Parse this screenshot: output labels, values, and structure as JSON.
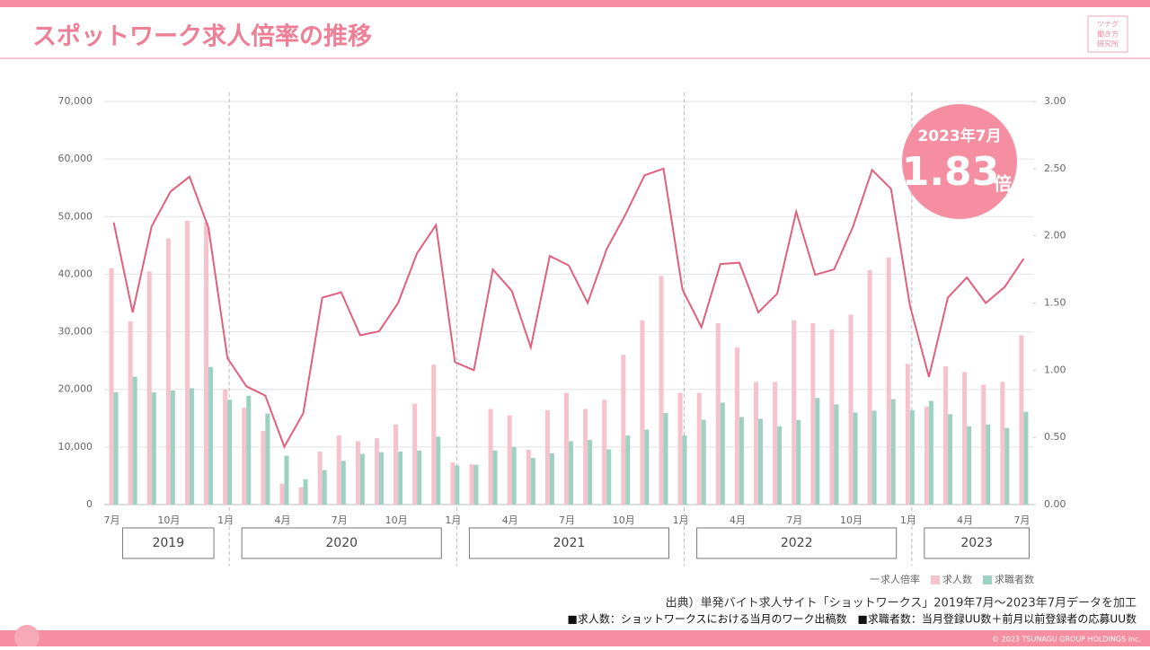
{
  "header": {
    "title": "スポットワーク求人倍率の推移",
    "logo": [
      "ツナグ",
      "働き方",
      "研究所"
    ]
  },
  "chart_data": {
    "type": "bar",
    "categories": [
      "7月",
      null,
      null,
      "10月",
      null,
      null,
      "1月",
      null,
      null,
      "4月",
      null,
      null,
      "7月",
      null,
      null,
      "10月",
      null,
      null,
      "1月",
      null,
      null,
      "4月",
      null,
      null,
      "7月",
      null,
      null,
      "10月",
      null,
      null,
      "1月",
      null,
      null,
      "4月",
      null,
      null,
      "7月",
      null,
      null,
      "10月",
      null,
      null,
      "1月",
      null,
      null,
      "4月",
      null,
      null,
      "7月"
    ],
    "year_groups": [
      {
        "label": "2019",
        "count": 6
      },
      {
        "label": "2020",
        "count": 12
      },
      {
        "label": "2021",
        "count": 12
      },
      {
        "label": "2022",
        "count": 12
      },
      {
        "label": "2023",
        "count": 7
      }
    ],
    "series": [
      {
        "name": "求人倍率",
        "type": "line",
        "axis": "y2",
        "color": "#e0607e",
        "values": [
          2.1,
          1.43,
          2.07,
          2.33,
          2.44,
          2.06,
          1.09,
          0.88,
          0.81,
          0.43,
          0.68,
          1.54,
          1.58,
          1.26,
          1.29,
          1.5,
          1.87,
          2.08,
          1.06,
          1.0,
          1.75,
          1.59,
          1.17,
          1.85,
          1.78,
          1.5,
          1.9,
          2.16,
          2.45,
          2.5,
          1.6,
          1.32,
          1.79,
          1.8,
          1.43,
          1.57,
          2.18,
          1.71,
          1.75,
          2.07,
          2.49,
          2.35,
          1.48,
          0.95,
          1.54,
          1.69,
          1.5,
          1.62,
          1.83
        ]
      },
      {
        "name": "求人数",
        "type": "bar",
        "color": "#f6c2cc",
        "values": [
          41000,
          31800,
          40500,
          46200,
          49300,
          49000,
          20000,
          16800,
          12800,
          3600,
          3000,
          9200,
          12000,
          11000,
          11500,
          13900,
          17500,
          24300,
          7300,
          7000,
          16600,
          15500,
          9500,
          16400,
          19400,
          16600,
          18200,
          26000,
          32000,
          39700,
          19400,
          19400,
          31500,
          27300,
          21300,
          21300,
          32000,
          31500,
          30400,
          33000,
          40700,
          42900,
          24400,
          17000,
          24000,
          23000,
          20800,
          21300,
          29400
        ]
      },
      {
        "name": "求職者数",
        "type": "bar",
        "color": "#9dd2c2",
        "values": [
          19500,
          22200,
          19500,
          19800,
          20200,
          23900,
          18200,
          18900,
          15800,
          8500,
          4400,
          6000,
          7600,
          8800,
          9100,
          9200,
          9400,
          11800,
          6800,
          6900,
          9400,
          10000,
          8100,
          8900,
          11000,
          11200,
          9600,
          12000,
          13000,
          15900,
          12000,
          14700,
          17700,
          15200,
          14900,
          13600,
          14700,
          18500,
          17400,
          16000,
          16300,
          18300,
          16400,
          18000,
          15700,
          13600,
          13900,
          13300,
          16100
        ]
      }
    ],
    "ylim": [
      0,
      70000
    ],
    "yticks": [
      0,
      {
        "value": 10000,
        "label": "10,000"
      },
      {
        "value": 20000,
        "label": "20,000"
      },
      {
        "value": 30000,
        "label": "30,000"
      },
      {
        "value": 40000,
        "label": "40,000"
      },
      {
        "value": 50000,
        "label": "50,000"
      },
      {
        "value": 60000,
        "label": "60,000"
      },
      {
        "value": 70000,
        "label": "70,000"
      }
    ],
    "y2lim": [
      0,
      3
    ],
    "y2ticks": [
      {
        "value": 0,
        "label": "0.00"
      },
      {
        "value": 0.5,
        "label": "0.50"
      },
      {
        "value": 1,
        "label": "1.00"
      },
      {
        "value": 1.5,
        "label": "1.50"
      },
      {
        "value": 2,
        "label": "2.00"
      },
      {
        "value": 2.5,
        "label": "2.50"
      },
      {
        "value": 3,
        "label": "3.00"
      }
    ],
    "grid": true,
    "legend_prefix": "一",
    "badge": {
      "period": "2023年7月",
      "value": "1.83",
      "unit": "倍"
    }
  },
  "notes": [
    "出典）単発バイト求人サイト「ショットワークス」2019年7月～2023年7月データを加工",
    "■求人数：ショットワークスにおける当月のワーク出稿数　■求職者数：当月登録UU数＋前月以前登録者の応募UU数"
  ],
  "footer": {
    "copyright": "© 2023 TSUNAGU GROUP HOLDINGS Inc."
  }
}
